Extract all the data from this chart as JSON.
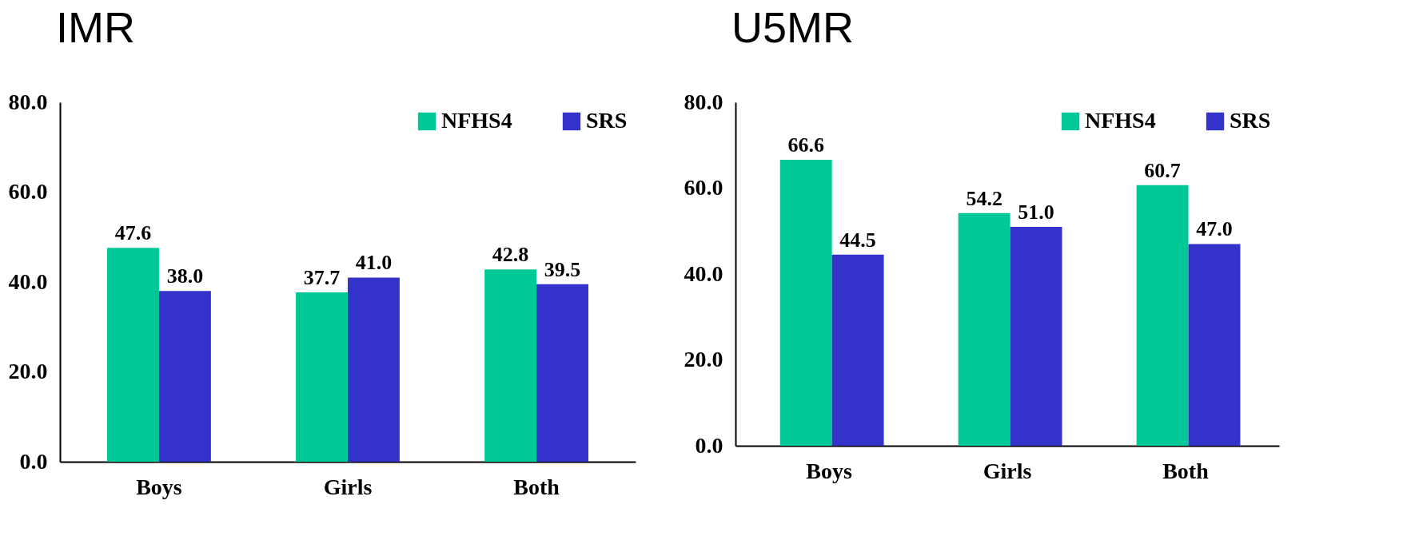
{
  "chart_data": [
    {
      "type": "bar",
      "title": "IMR",
      "categories": [
        "Boys",
        "Girls",
        "Both"
      ],
      "series": [
        {
          "name": "NFHS4",
          "color": "#00c896",
          "values": [
            47.6,
            37.7,
            42.8
          ],
          "value_labels": [
            "47.6",
            "37.7",
            "42.8"
          ]
        },
        {
          "name": "SRS",
          "color": "#3333cc",
          "values": [
            38.0,
            41.0,
            39.5
          ],
          "value_labels": [
            "38.0",
            "41.0",
            "39.5"
          ]
        }
      ],
      "ylim": [
        0,
        80
      ],
      "yticks": [
        {
          "value": 0,
          "label": "0.0"
        },
        {
          "value": 20,
          "label": "20.0"
        },
        {
          "value": 40,
          "label": "40.0"
        },
        {
          "value": 60,
          "label": "60.0"
        },
        {
          "value": 80,
          "label": "80.0"
        }
      ],
      "grid": false,
      "legend": "top right"
    },
    {
      "type": "bar",
      "title": "U5MR",
      "categories": [
        "Boys",
        "Girls",
        "Both"
      ],
      "series": [
        {
          "name": "NFHS4",
          "color": "#00c896",
          "values": [
            66.6,
            54.2,
            60.7
          ],
          "value_labels": [
            "66.6",
            "54.2",
            "60.7"
          ]
        },
        {
          "name": "SRS",
          "color": "#3333cc",
          "values": [
            44.5,
            51.0,
            47.0
          ],
          "value_labels": [
            "44.5",
            "51.0",
            "47.0"
          ]
        }
      ],
      "ylim": [
        0,
        80
      ],
      "yticks": [
        {
          "value": 0,
          "label": "0.0"
        },
        {
          "value": 20,
          "label": "20.0"
        },
        {
          "value": 40,
          "label": "40.0"
        },
        {
          "value": 60,
          "label": "60.0"
        },
        {
          "value": 80,
          "label": "80.0"
        }
      ],
      "grid": false,
      "legend": "top right"
    }
  ]
}
